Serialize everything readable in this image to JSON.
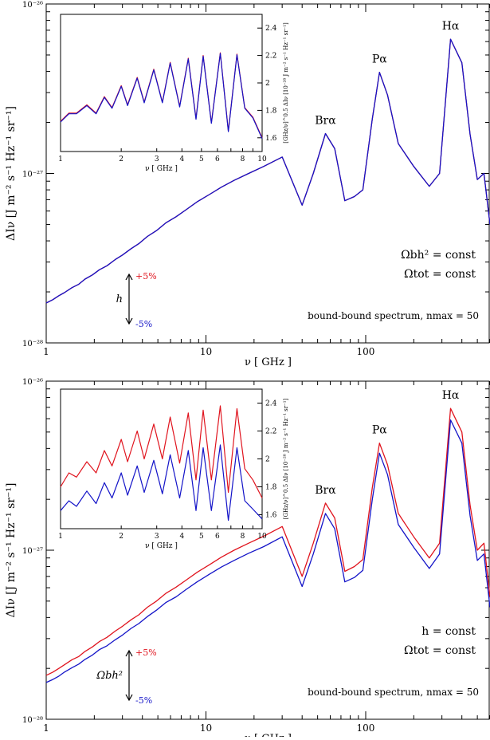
{
  "chart_data": [
    {
      "type": "line",
      "scale": {
        "x": "log",
        "y": "log"
      },
      "xlim": [
        1,
        600
      ],
      "ylim": [
        1e-28,
        1e-26
      ],
      "xlabel": "ν [ GHz ]",
      "ylabel": "ΔIν [J m⁻² s⁻¹ Hz⁻¹ sr⁻¹]",
      "x_ticklabels": [
        "1",
        "10",
        "100"
      ],
      "y_ticklabels": [
        "10⁻²⁸",
        "10⁻²⁷",
        "10⁻²⁶"
      ],
      "peak_labels": [
        {
          "text": "Hα",
          "x": 340
        },
        {
          "text": "Pα",
          "x": 122
        },
        {
          "text": "Brα",
          "x": 56
        }
      ],
      "annotations": {
        "line1": "Ωbh² = const",
        "line2": "Ωtot = const",
        "spectrum_note": "bound-bound spectrum, nmax = 50",
        "param": "h",
        "plus": "+5%",
        "minus": "-5%"
      },
      "series": [
        {
          "color": "#e0141e",
          "offset": 0.0,
          "x": [
            1,
            1.1,
            1.2,
            1.3,
            1.45,
            1.6,
            1.75,
            1.95,
            2.15,
            2.4,
            2.7,
            3.0,
            3.4,
            3.8,
            4.3,
            4.9,
            5.6,
            6.5,
            7.5,
            8.8,
            10.5,
            12.5,
            15,
            18.5,
            23,
            30,
            40,
            47,
            56,
            64,
            74,
            85,
            96,
            110,
            122,
            137,
            160,
            200,
            250,
            290,
            340,
            400,
            450,
            500,
            550,
            600
          ],
          "y": [
            1.72e-28,
            1.8e-28,
            1.9e-28,
            1.98e-28,
            2.12e-28,
            2.22e-28,
            2.38e-28,
            2.52e-28,
            2.7e-28,
            2.85e-28,
            3.1e-28,
            3.3e-28,
            3.6e-28,
            3.85e-28,
            4.25e-28,
            4.6e-28,
            5.1e-28,
            5.55e-28,
            6.1e-28,
            6.8e-28,
            7.5e-28,
            8.3e-28,
            9.1e-28,
            1e-27,
            1.1e-27,
            1.25e-27,
            6.5e-28,
            1e-27,
            1.72e-27,
            1.4e-27,
            6.9e-28,
            7.3e-28,
            8e-28,
            2.1e-27,
            3.95e-27,
            2.9e-27,
            1.5e-27,
            1.1e-27,
            8.4e-28,
            1e-27,
            6.2e-27,
            4.5e-27,
            1.7e-27,
            9.2e-28,
            1e-27,
            5e-28
          ]
        },
        {
          "color": "#1414c8",
          "offset": -0.005,
          "x": [
            1,
            1.1,
            1.2,
            1.3,
            1.45,
            1.6,
            1.75,
            1.95,
            2.15,
            2.4,
            2.7,
            3.0,
            3.4,
            3.8,
            4.3,
            4.9,
            5.6,
            6.5,
            7.5,
            8.8,
            10.5,
            12.5,
            15,
            18.5,
            23,
            30,
            40,
            47,
            56,
            64,
            74,
            85,
            96,
            110,
            122,
            137,
            160,
            200,
            250,
            290,
            340,
            400,
            450,
            500,
            550,
            600
          ],
          "y": [
            1.72e-28,
            1.8e-28,
            1.9e-28,
            1.98e-28,
            2.12e-28,
            2.22e-28,
            2.38e-28,
            2.52e-28,
            2.7e-28,
            2.85e-28,
            3.1e-28,
            3.3e-28,
            3.6e-28,
            3.85e-28,
            4.25e-28,
            4.6e-28,
            5.1e-28,
            5.55e-28,
            6.1e-28,
            6.8e-28,
            7.5e-28,
            8.3e-28,
            9.1e-28,
            1e-27,
            1.1e-27,
            1.25e-27,
            6.5e-28,
            1e-27,
            1.72e-27,
            1.4e-27,
            6.9e-28,
            7.3e-28,
            8e-28,
            2.1e-27,
            3.95e-27,
            2.9e-27,
            1.5e-27,
            1.1e-27,
            8.4e-28,
            1e-27,
            6.2e-27,
            4.5e-27,
            1.7e-27,
            9.2e-28,
            1e-27,
            5e-28
          ]
        }
      ],
      "inset": {
        "type": "line",
        "scale": {
          "x": "log",
          "y": "linear"
        },
        "xlim": [
          1,
          10
        ],
        "ylim": [
          1.5,
          2.5
        ],
        "xlabel": "ν [ GHz ]",
        "ylabel": "[GHz/ν]^0.5 ΔIν [10⁻²⁸ J m⁻² s⁻¹ Hz⁻¹ sr⁻¹]",
        "x_ticklabels": [
          "1",
          "2",
          "3",
          "4",
          "5",
          "6",
          "8",
          "10"
        ],
        "y_ticklabels": [
          "1.6",
          "1.8",
          "2",
          "2.2",
          "2.4"
        ],
        "series": [
          {
            "color": "#e0141e",
            "x": [
              1,
              1.1,
              1.2,
              1.35,
              1.5,
              1.65,
              1.8,
              2.0,
              2.15,
              2.4,
              2.6,
              2.9,
              3.2,
              3.5,
              3.9,
              4.3,
              4.7,
              5.1,
              5.6,
              6.2,
              6.8,
              7.5,
              8.2,
              9.0,
              10
            ],
            "y": [
              1.72,
              1.78,
              1.78,
              1.84,
              1.78,
              1.9,
              1.82,
              1.98,
              1.84,
              2.04,
              1.86,
              2.1,
              1.86,
              2.15,
              1.83,
              2.18,
              1.74,
              2.2,
              1.71,
              2.22,
              1.65,
              2.21,
              1.82,
              1.75,
              1.6
            ]
          },
          {
            "color": "#1414c8",
            "x": [
              1,
              1.1,
              1.2,
              1.35,
              1.5,
              1.65,
              1.8,
              2.0,
              2.15,
              2.4,
              2.6,
              2.9,
              3.2,
              3.5,
              3.9,
              4.3,
              4.7,
              5.1,
              5.6,
              6.2,
              6.8,
              7.5,
              8.2,
              9.0,
              10
            ],
            "y": [
              1.715,
              1.775,
              1.775,
              1.835,
              1.775,
              1.895,
              1.815,
              1.975,
              1.835,
              2.035,
              1.855,
              2.095,
              1.855,
              2.145,
              1.825,
              2.175,
              1.735,
              2.195,
              1.705,
              2.215,
              1.645,
              2.205,
              1.815,
              1.745,
              1.595
            ]
          }
        ]
      }
    },
    {
      "type": "line",
      "scale": {
        "x": "log",
        "y": "log"
      },
      "xlim": [
        1,
        600
      ],
      "ylim": [
        1e-28,
        1e-26
      ],
      "xlabel": "ν [ GHz ]",
      "ylabel": "ΔIν [J m⁻² s⁻¹ Hz⁻¹ sr⁻¹]",
      "x_ticklabels": [
        "1",
        "10",
        "100"
      ],
      "y_ticklabels": [
        "10⁻²⁸",
        "10⁻²⁷",
        "10⁻²⁶"
      ],
      "peak_labels": [
        {
          "text": "Hα",
          "x": 340
        },
        {
          "text": "Pα",
          "x": 122
        },
        {
          "text": "Brα",
          "x": 56
        }
      ],
      "annotations": {
        "line1": "h = const",
        "line2": "Ωtot = const",
        "spectrum_note": "bound-bound spectrum, nmax = 50",
        "param": "Ωbh²",
        "plus": "+5%",
        "minus": "-5%"
      },
      "series": [
        {
          "color": "#e0141e",
          "x": [
            1,
            1.1,
            1.2,
            1.3,
            1.45,
            1.6,
            1.75,
            1.95,
            2.15,
            2.4,
            2.7,
            3.0,
            3.4,
            3.8,
            4.3,
            4.9,
            5.6,
            6.5,
            7.5,
            8.8,
            10.5,
            12.5,
            15,
            18.5,
            23,
            30,
            40,
            47,
            56,
            64,
            74,
            85,
            96,
            110,
            122,
            137,
            160,
            200,
            250,
            290,
            340,
            400,
            450,
            500,
            550,
            600
          ],
          "y": [
            1.82e-28,
            1.9e-28,
            2e-28,
            2.1e-28,
            2.25e-28,
            2.35e-28,
            2.52e-28,
            2.68e-28,
            2.88e-28,
            3.05e-28,
            3.32e-28,
            3.55e-28,
            3.88e-28,
            4.15e-28,
            4.6e-28,
            5e-28,
            5.55e-28,
            6.05e-28,
            6.65e-28,
            7.4e-28,
            8.2e-28,
            9.1e-28,
            1e-27,
            1.1e-27,
            1.21e-27,
            1.38e-27,
            7e-28,
            1.1e-27,
            1.9e-27,
            1.55e-27,
            7.5e-28,
            8e-28,
            8.8e-28,
            2.35e-27,
            4.3e-27,
            3.2e-27,
            1.65e-27,
            1.2e-27,
            9e-28,
            1.1e-27,
            6.9e-27,
            5e-27,
            1.85e-27,
            1e-27,
            1.1e-27,
            5.3e-28
          ]
        },
        {
          "color": "#1414c8",
          "x": [
            1,
            1.1,
            1.2,
            1.3,
            1.45,
            1.6,
            1.75,
            1.95,
            2.15,
            2.4,
            2.7,
            3.0,
            3.4,
            3.8,
            4.3,
            4.9,
            5.6,
            6.5,
            7.5,
            8.8,
            10.5,
            12.5,
            15,
            18.5,
            23,
            30,
            40,
            47,
            56,
            64,
            74,
            85,
            96,
            110,
            122,
            137,
            160,
            200,
            250,
            290,
            340,
            400,
            450,
            500,
            550,
            600
          ],
          "y": [
            1.65e-28,
            1.72e-28,
            1.8e-28,
            1.9e-28,
            2.02e-28,
            2.12e-28,
            2.26e-28,
            2.4e-28,
            2.58e-28,
            2.72e-28,
            2.95e-28,
            3.15e-28,
            3.45e-28,
            3.68e-28,
            4.05e-28,
            4.42e-28,
            4.9e-28,
            5.3e-28,
            5.85e-28,
            6.5e-28,
            7.2e-28,
            7.95e-28,
            8.7e-28,
            9.6e-28,
            1.05e-27,
            1.2e-27,
            6.1e-28,
            9.5e-28,
            1.65e-27,
            1.34e-27,
            6.5e-28,
            6.9e-28,
            7.6e-28,
            2e-27,
            3.75e-27,
            2.8e-27,
            1.42e-27,
            1.04e-27,
            7.8e-28,
            9.5e-28,
            5.9e-27,
            4.3e-27,
            1.6e-27,
            8.7e-28,
            9.5e-28,
            4.6e-28
          ]
        }
      ],
      "inset": {
        "type": "line",
        "scale": {
          "x": "log",
          "y": "linear"
        },
        "xlim": [
          1,
          10
        ],
        "ylim": [
          1.5,
          2.5
        ],
        "xlabel": "ν [ GHz ]",
        "ylabel": "[GHz/ν]^0.5 ΔIν [10⁻²⁸ J m⁻² s⁻¹ Hz⁻¹ sr⁻¹]",
        "x_ticklabels": [
          "1",
          "2",
          "3",
          "4",
          "5",
          "6",
          "8",
          "10"
        ],
        "y_ticklabels": [
          "1.6",
          "1.8",
          "2",
          "2.2",
          "2.4"
        ],
        "series": [
          {
            "color": "#e0141e",
            "x": [
              1,
              1.1,
              1.2,
              1.35,
              1.5,
              1.65,
              1.8,
              2.0,
              2.15,
              2.4,
              2.6,
              2.9,
              3.2,
              3.5,
              3.9,
              4.3,
              4.7,
              5.1,
              5.6,
              6.2,
              6.8,
              7.5,
              8.2,
              9.0,
              10
            ],
            "y": [
              1.8,
              1.9,
              1.87,
              1.98,
              1.9,
              2.06,
              1.95,
              2.14,
              1.98,
              2.2,
              2.0,
              2.25,
              2.0,
              2.3,
              1.97,
              2.33,
              1.85,
              2.35,
              1.85,
              2.38,
              1.76,
              2.36,
              1.93,
              1.85,
              1.72
            ]
          },
          {
            "color": "#1414c8",
            "x": [
              1,
              1.1,
              1.2,
              1.35,
              1.5,
              1.65,
              1.8,
              2.0,
              2.15,
              2.4,
              2.6,
              2.9,
              3.2,
              3.5,
              3.9,
              4.3,
              4.7,
              5.1,
              5.6,
              6.2,
              6.8,
              7.5,
              8.2,
              9.0,
              10
            ],
            "y": [
              1.63,
              1.7,
              1.66,
              1.77,
              1.68,
              1.83,
              1.72,
              1.9,
              1.74,
              1.95,
              1.76,
              1.99,
              1.75,
              2.03,
              1.72,
              2.06,
              1.63,
              2.08,
              1.63,
              2.1,
              1.56,
              2.08,
              1.7,
              1.64,
              1.57
            ]
          }
        ]
      }
    }
  ]
}
